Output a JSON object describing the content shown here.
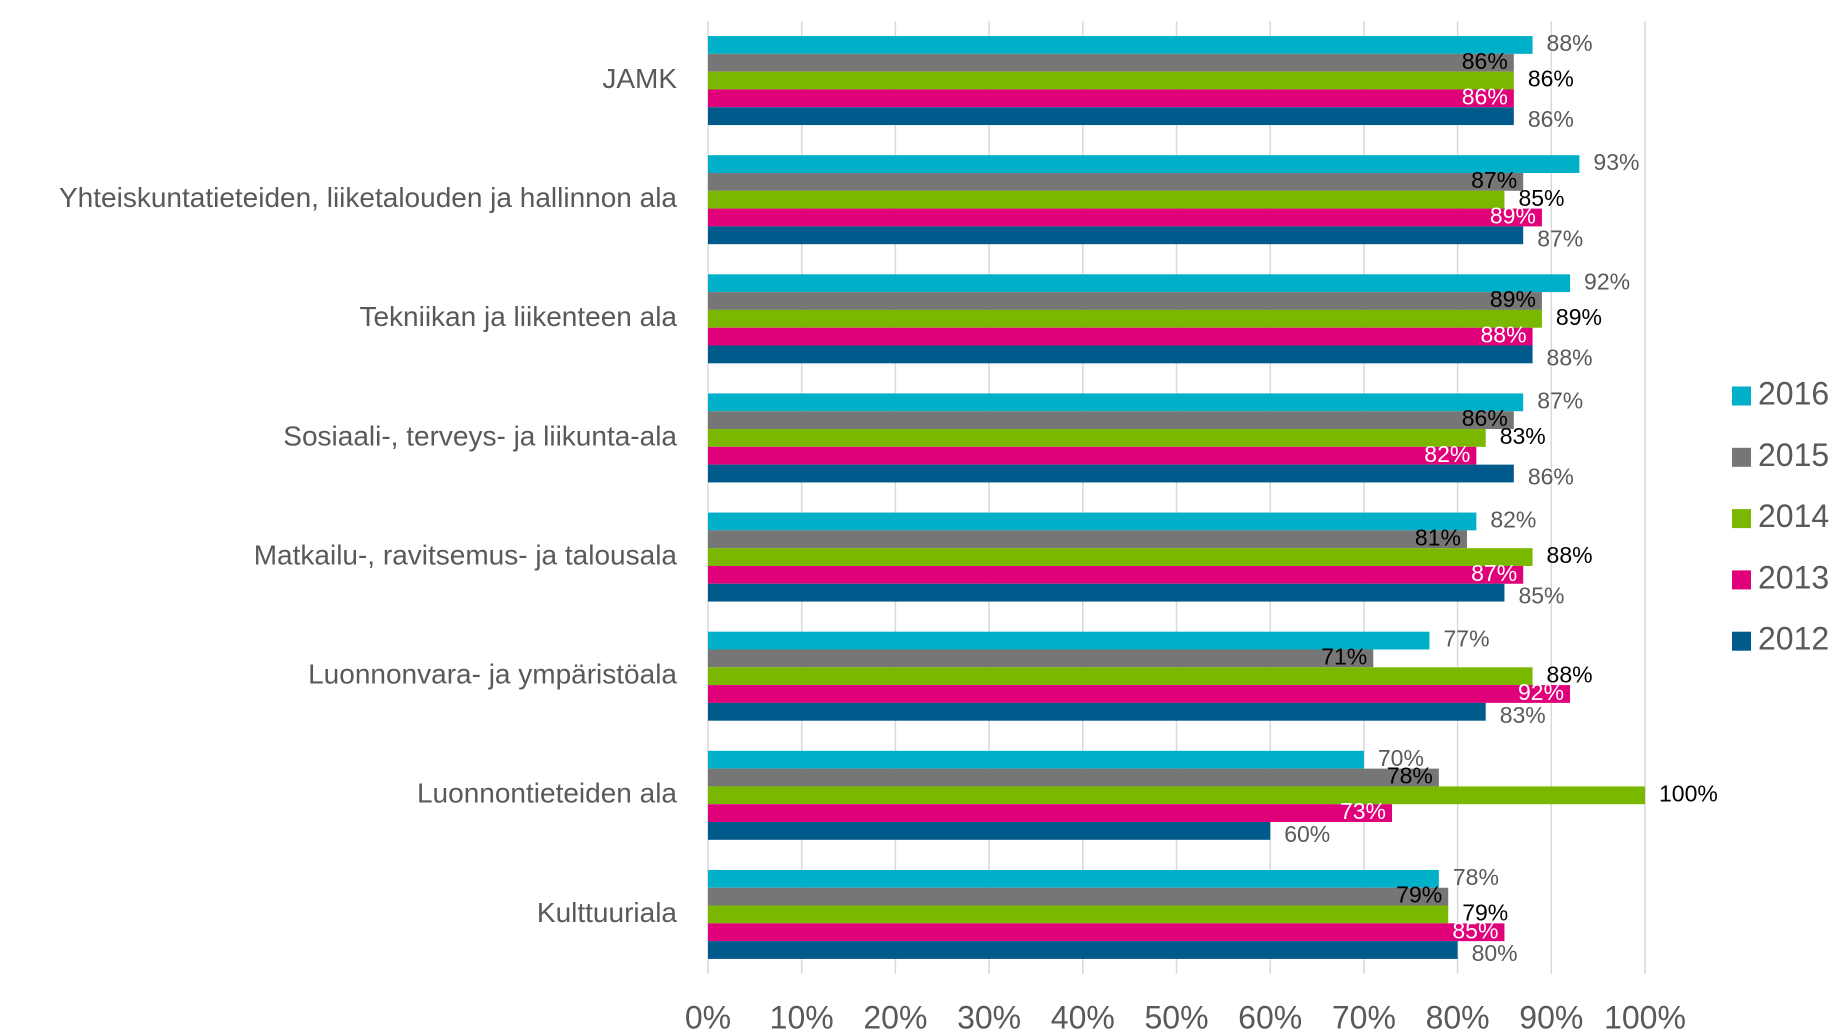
{
  "chart_data": {
    "type": "bar",
    "orientation": "horizontal",
    "categories": [
      "JAMK",
      "Yhteiskuntatieteiden, liiketalouden ja hallinnon ala",
      "Tekniikan ja liikenteen ala",
      "Sosiaali-, terveys- ja liikunta-ala",
      "Matkailu-, ravitsemus- ja talousala",
      "Luonnonvara- ja ympäristöala",
      "Luonnontieteiden ala",
      "Kulttuuriala"
    ],
    "series": [
      {
        "name": "2016",
        "color": "#00b0c8",
        "values": [
          88,
          93,
          92,
          87,
          82,
          77,
          70,
          78
        ],
        "value_labels": [
          "88%",
          "93%",
          "92%",
          "87%",
          "82%",
          "77%",
          "70%",
          "78%"
        ]
      },
      {
        "name": "2015",
        "color": "#767676",
        "values": [
          86,
          87,
          89,
          86,
          81,
          71,
          78,
          79
        ],
        "value_labels": [
          "86%",
          "87%",
          "89%",
          "86%",
          "81%",
          "71%",
          "78%",
          "79%"
        ]
      },
      {
        "name": "2014",
        "color": "#7ab800",
        "values": [
          86,
          85,
          89,
          83,
          88,
          88,
          100,
          79
        ],
        "value_labels": [
          "86%",
          "85%",
          "89%",
          "83%",
          "88%",
          "88%",
          "100%",
          "79%"
        ]
      },
      {
        "name": "2013",
        "color": "#e0007a",
        "values": [
          86,
          89,
          88,
          82,
          87,
          92,
          73,
          85
        ],
        "value_labels": [
          "86%",
          "89%",
          "88%",
          "82%",
          "87%",
          "92%",
          "73%",
          "85%"
        ]
      },
      {
        "name": "2012",
        "color": "#005a8c",
        "values": [
          86,
          87,
          88,
          86,
          85,
          83,
          60,
          80
        ],
        "value_labels": [
          "86%",
          "87%",
          "88%",
          "86%",
          "85%",
          "83%",
          "60%",
          "80%"
        ]
      }
    ],
    "xlim": [
      0,
      100
    ],
    "xticks": [
      {
        "value": 0,
        "label": "0%"
      },
      {
        "value": 10,
        "label": "10%"
      },
      {
        "value": 20,
        "label": "20%"
      },
      {
        "value": 30,
        "label": "30%"
      },
      {
        "value": 40,
        "label": "40%"
      },
      {
        "value": 50,
        "label": "50%"
      },
      {
        "value": 60,
        "label": "60%"
      },
      {
        "value": 70,
        "label": "70%"
      },
      {
        "value": 80,
        "label": "80%"
      },
      {
        "value": 90,
        "label": "90%"
      },
      {
        "value": 100,
        "label": "100%"
      }
    ],
    "grid": true,
    "legend": "right"
  }
}
